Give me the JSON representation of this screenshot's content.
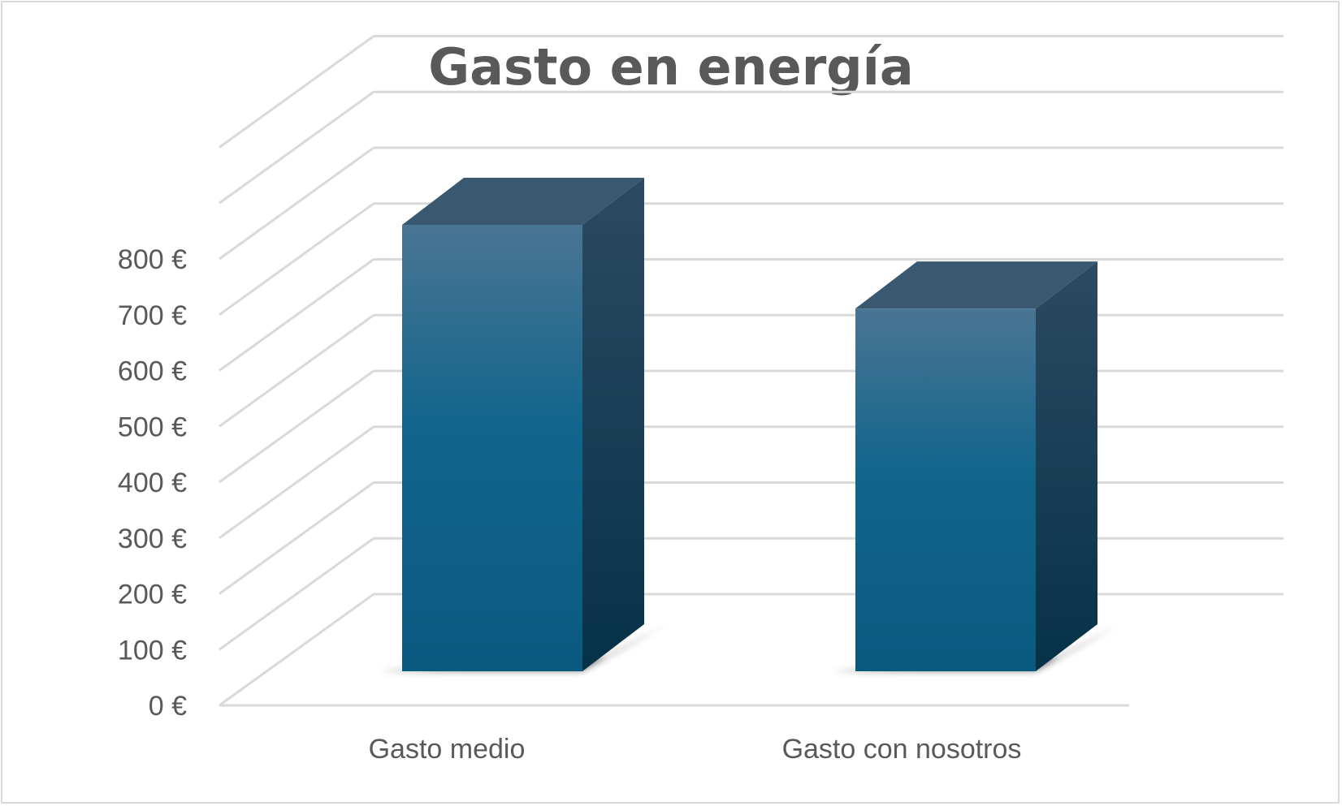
{
  "chart_data": {
    "type": "bar",
    "style": "3d-column",
    "title": "Gasto en energía",
    "categories": [
      "Gasto medio",
      "Gasto con nosotros"
    ],
    "values": [
      800,
      650
    ],
    "ylim": [
      0,
      1000
    ],
    "ytick_values": [
      0,
      100,
      200,
      300,
      400,
      500,
      600,
      700,
      800
    ],
    "ytick_labels": [
      "0 €",
      "100 €",
      "200 €",
      "300 €",
      "400 €",
      "500 €",
      "600 €",
      "700 €",
      "800 €"
    ],
    "grid": true,
    "legend": "none",
    "colors": {
      "bar_front_top": "#4a7594",
      "bar_front_bottom": "#0a5a80",
      "bar_top": "#3a586f",
      "bar_side_top": "#2d4a62",
      "bar_side_bottom": "#053248",
      "grid": "#d9d9d9",
      "text": "#595959"
    }
  }
}
